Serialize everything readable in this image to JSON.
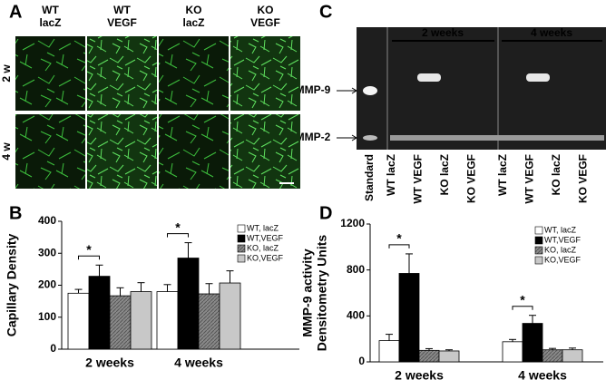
{
  "panels": [
    "A",
    "B",
    "C",
    "D"
  ],
  "panel_a": {
    "columns": [
      [
        "WT",
        "lacZ"
      ],
      [
        "WT",
        "VEGF"
      ],
      [
        "KO",
        "lacZ"
      ],
      [
        "KO",
        "VEGF"
      ]
    ],
    "rows": [
      "2 w",
      "4 w"
    ]
  },
  "panel_c": {
    "groups": [
      "2 weeks",
      "4 weeks"
    ],
    "bands": [
      "MMP-9",
      "MMP-2"
    ],
    "lanes": [
      "Standard",
      "WT lacZ",
      "WT VEGF",
      "KO lacZ",
      "KO VEGF",
      "WT lacZ",
      "WT VEGF",
      "KO lacZ",
      "KO VEGF"
    ]
  },
  "chart_data": [
    {
      "type": "bar",
      "y_label": [
        "Capillary Density"
      ],
      "categories": [
        "2 weeks",
        "4 weeks"
      ],
      "series": [
        {
          "name": "WT, lacZ",
          "color": "#ffffff",
          "values": [
            175,
            180
          ],
          "errors": [
            12,
            22
          ]
        },
        {
          "name": "WT,VEGF",
          "color": "#000000",
          "values": [
            228,
            285
          ],
          "errors": [
            35,
            48
          ]
        },
        {
          "name": "KO, lacZ",
          "color": "#7f7f7f",
          "hatch": true,
          "values": [
            167,
            173
          ],
          "errors": [
            25,
            32
          ]
        },
        {
          "name": "KO,VEGF",
          "color": "#c8c8c8",
          "values": [
            180,
            207
          ],
          "errors": [
            28,
            38
          ]
        }
      ],
      "ylim": [
        0,
        400
      ],
      "yticks": [
        0,
        100,
        200,
        300,
        400
      ],
      "annotations": [
        "*",
        "*"
      ]
    },
    {
      "type": "bar",
      "y_label": [
        "MMP-9 activity",
        "Densitometry Units"
      ],
      "categories": [
        "2 weeks",
        "4 weeks"
      ],
      "series": [
        {
          "name": "WT, lacZ",
          "color": "#ffffff",
          "values": [
            185,
            175
          ],
          "errors": [
            55,
            20
          ]
        },
        {
          "name": "WT,VEGF",
          "color": "#000000",
          "values": [
            770,
            335
          ],
          "errors": [
            170,
            70
          ]
        },
        {
          "name": "KO, lacZ",
          "color": "#7f7f7f",
          "hatch": true,
          "values": [
            100,
            105
          ],
          "errors": [
            15,
            12
          ]
        },
        {
          "name": "KO,VEGF",
          "color": "#c8c8c8",
          "values": [
            95,
            105
          ],
          "errors": [
            10,
            15
          ]
        }
      ],
      "ylim": [
        0,
        1200
      ],
      "yticks": [
        0,
        400,
        800,
        1200
      ],
      "annotations": [
        "*",
        "*"
      ]
    }
  ]
}
